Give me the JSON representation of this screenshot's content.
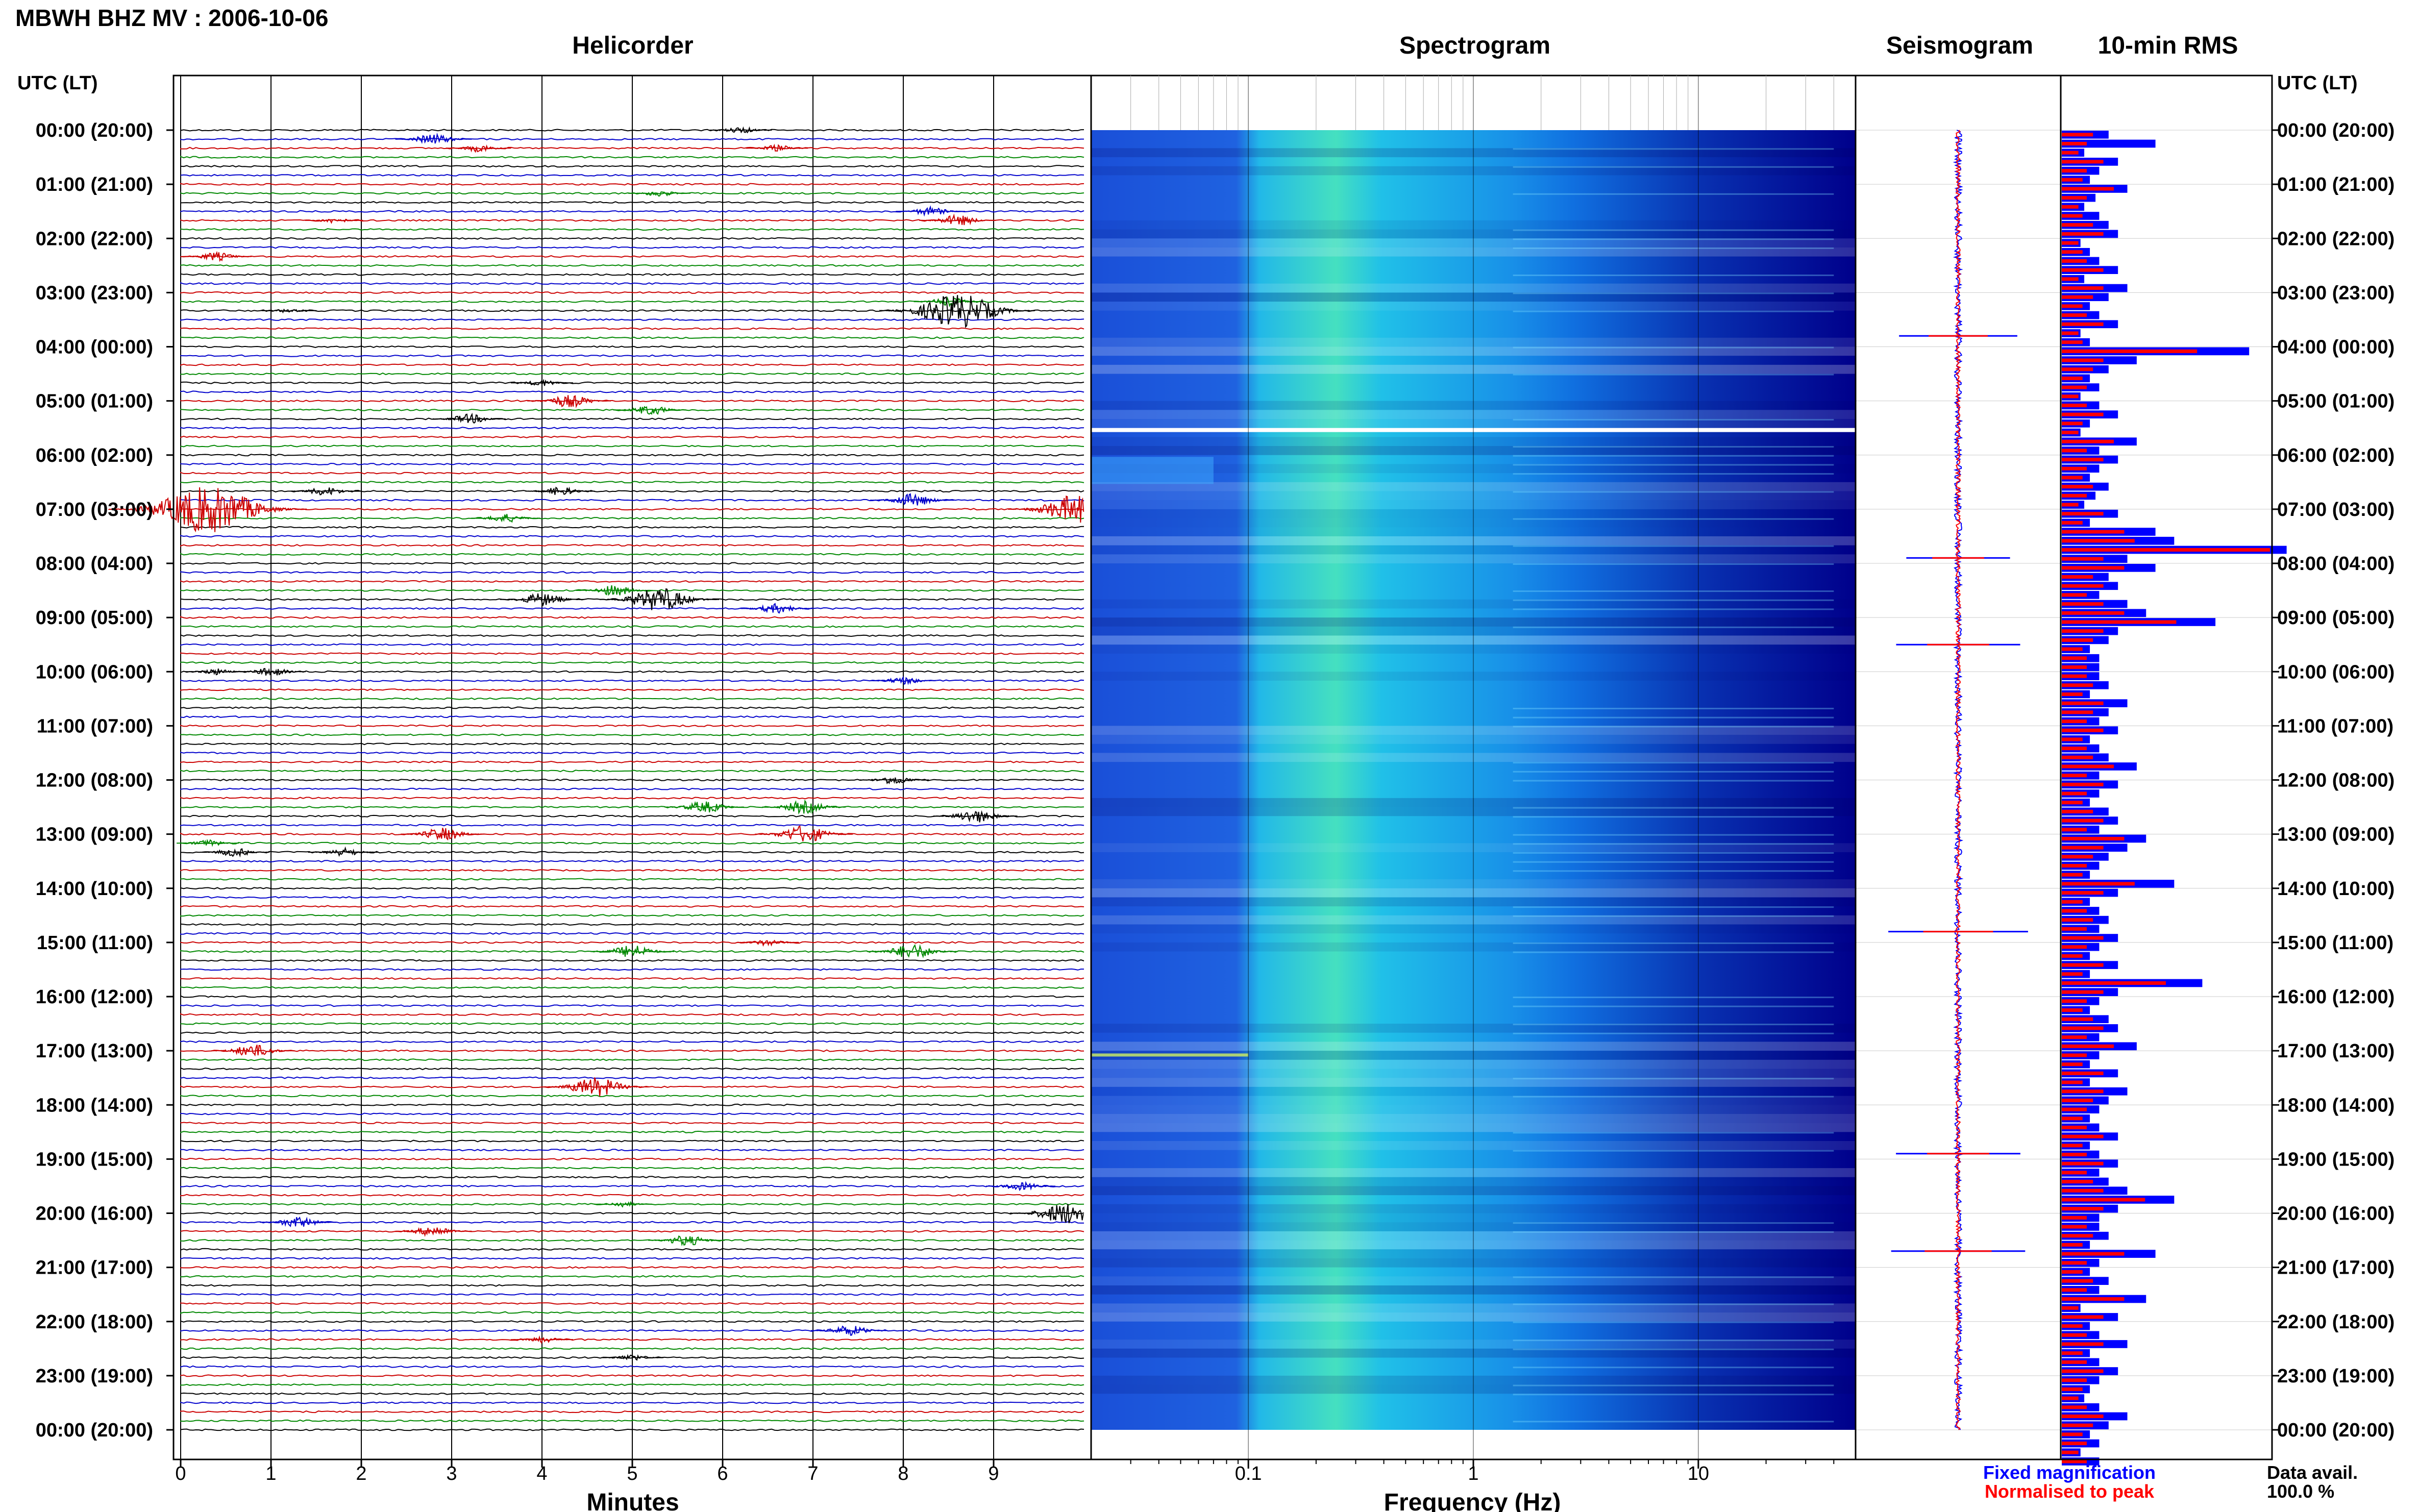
{
  "title": "MBWH BHZ MV : 2006-10-06",
  "panels": {
    "helicorder": "Helicorder",
    "spectrogram": "Spectrogram",
    "seismogram": "Seismogram",
    "rms": "10-min RMS"
  },
  "axis_title_left": "UTC (LT)",
  "axis_title_right": "UTC (LT)",
  "xlabel_helicorder": "Minutes",
  "xlabel_spectrogram": "Frequency (Hz)",
  "legend": {
    "fixed": "Fixed magnification",
    "normalised": "Normalised to peak"
  },
  "data_avail_label": "Data avail.",
  "data_avail_value": "100.0 %",
  "colors": {
    "trace_cycle": [
      "#000000",
      "#0000cc",
      "#cc0000",
      "#008800"
    ],
    "spectrogram_low": "#00008b",
    "spectrogram_high": "#c8f060",
    "rms_fixed": "#0000ff",
    "rms_normalised": "#ff0000"
  },
  "chart_data": [
    {
      "type": "line",
      "name": "helicorder",
      "xlabel": "Minutes",
      "xticks": [
        "0",
        "1",
        "2",
        "3",
        "4",
        "5",
        "6",
        "7",
        "8",
        "9"
      ],
      "xlim": [
        0,
        10
      ],
      "ytick_labels": [
        "00:00 (20:00)",
        "01:00 (21:00)",
        "02:00 (22:00)",
        "03:00 (23:00)",
        "04:00 (00:00)",
        "05:00 (01:00)",
        "06:00 (02:00)",
        "07:00 (03:00)",
        "08:00 (04:00)",
        "09:00 (05:00)",
        "10:00 (06:00)",
        "11:00 (07:00)",
        "12:00 (08:00)",
        "13:00 (09:00)",
        "14:00 (10:00)",
        "15:00 (11:00)",
        "16:00 (12:00)",
        "17:00 (13:00)",
        "18:00 (14:00)",
        "19:00 (15:00)",
        "20:00 (16:00)",
        "21:00 (17:00)",
        "22:00 (18:00)",
        "23:00 (19:00)",
        "00:00 (20:00)"
      ],
      "traces_per_hour": 6,
      "events": [
        {
          "hour": 0,
          "line": 0,
          "minute": 6.2,
          "amp": 0.3
        },
        {
          "hour": 0,
          "line": 1,
          "minute": 2.8,
          "amp": 0.5
        },
        {
          "hour": 0,
          "line": 2,
          "minute": 6.6,
          "amp": 0.3
        },
        {
          "hour": 0,
          "line": 2,
          "minute": 3.3,
          "amp": 0.35
        },
        {
          "hour": 1,
          "line": 1,
          "minute": 5.3,
          "amp": 0.3
        },
        {
          "hour": 1,
          "line": 3,
          "minute": 8.3,
          "amp": 0.4
        },
        {
          "hour": 1,
          "line": 4,
          "minute": 8.6,
          "amp": 0.5
        },
        {
          "hour": 1,
          "line": 4,
          "minute": 1.7,
          "amp": 0.25
        },
        {
          "hour": 2,
          "line": 2,
          "minute": 0.4,
          "amp": 0.4
        },
        {
          "hour": 3,
          "line": 1,
          "minute": 8.5,
          "amp": 0.4
        },
        {
          "hour": 3,
          "line": 2,
          "minute": 8.6,
          "amp": 1.6
        },
        {
          "hour": 3,
          "line": 2,
          "minute": 1.2,
          "amp": 0.2
        },
        {
          "hour": 4,
          "line": 4,
          "minute": 4,
          "amp": 0.3
        },
        {
          "hour": 5,
          "line": 0,
          "minute": 4.3,
          "amp": 0.6
        },
        {
          "hour": 5,
          "line": 1,
          "minute": 5.2,
          "amp": 0.45
        },
        {
          "hour": 5,
          "line": 2,
          "minute": 3.2,
          "amp": 0.45
        },
        {
          "hour": 6,
          "line": 4,
          "minute": 1.6,
          "amp": 0.4
        },
        {
          "hour": 6,
          "line": 4,
          "minute": 4.2,
          "amp": 0.4
        },
        {
          "hour": 6,
          "line": 5,
          "minute": 8.1,
          "amp": 0.6
        },
        {
          "hour": 7,
          "line": 0,
          "minute": 0.3,
          "amp": 2.2
        },
        {
          "hour": 7,
          "line": 0,
          "minute": 9.9,
          "amp": 1.3
        },
        {
          "hour": 7,
          "line": 1,
          "minute": 3.6,
          "amp": 0.4
        },
        {
          "hour": 8,
          "line": 3,
          "minute": 4.8,
          "amp": 0.5
        },
        {
          "hour": 8,
          "line": 4,
          "minute": 4.0,
          "amp": 0.6
        },
        {
          "hour": 8,
          "line": 4,
          "minute": 5.3,
          "amp": 1.1
        },
        {
          "hour": 8,
          "line": 5,
          "minute": 6.6,
          "amp": 0.45
        },
        {
          "hour": 10,
          "line": 0,
          "minute": 0.4,
          "amp": 0.3
        },
        {
          "hour": 10,
          "line": 0,
          "minute": 1.0,
          "amp": 0.4
        },
        {
          "hour": 10,
          "line": 1,
          "minute": 8.0,
          "amp": 0.35
        },
        {
          "hour": 12,
          "line": 0,
          "minute": 7.9,
          "amp": 0.4
        },
        {
          "hour": 12,
          "line": 3,
          "minute": 5.8,
          "amp": 0.55
        },
        {
          "hour": 12,
          "line": 3,
          "minute": 6.9,
          "amp": 0.6
        },
        {
          "hour": 12,
          "line": 4,
          "minute": 8.8,
          "amp": 0.6
        },
        {
          "hour": 13,
          "line": 0,
          "minute": 2.9,
          "amp": 0.6
        },
        {
          "hour": 13,
          "line": 0,
          "minute": 6.9,
          "amp": 0.8
        },
        {
          "hour": 13,
          "line": 1,
          "minute": 0.3,
          "amp": 0.3
        },
        {
          "hour": 13,
          "line": 2,
          "minute": 0.6,
          "amp": 0.4
        },
        {
          "hour": 13,
          "line": 2,
          "minute": 1.8,
          "amp": 0.4
        },
        {
          "hour": 15,
          "line": 0,
          "minute": 6.5,
          "amp": 0.3
        },
        {
          "hour": 15,
          "line": 1,
          "minute": 8.1,
          "amp": 0.7
        },
        {
          "hour": 15,
          "line": 1,
          "minute": 5.0,
          "amp": 0.6
        },
        {
          "hour": 17,
          "line": 0,
          "minute": 0.8,
          "amp": 0.6
        },
        {
          "hour": 17,
          "line": 4,
          "minute": 4.6,
          "amp": 0.9
        },
        {
          "hour": 20,
          "line": 0,
          "minute": 9.8,
          "amp": 1.0
        },
        {
          "hour": 20,
          "line": 1,
          "minute": 1.3,
          "amp": 0.5
        },
        {
          "hour": 20,
          "line": 2,
          "minute": 2.8,
          "amp": 0.5
        },
        {
          "hour": 20,
          "line": 3,
          "minute": 5.6,
          "amp": 0.5
        },
        {
          "hour": 22,
          "line": 1,
          "minute": 7.4,
          "amp": 0.5
        },
        {
          "hour": 22,
          "line": 2,
          "minute": 4.0,
          "amp": 0.3
        },
        {
          "hour": 22,
          "line": 4,
          "minute": 5.0,
          "amp": 0.3
        },
        {
          "hour": 19,
          "line": 3,
          "minute": 9.3,
          "amp": 0.4
        },
        {
          "hour": 19,
          "line": 5,
          "minute": 4.9,
          "amp": 0.25
        }
      ]
    },
    {
      "type": "heatmap",
      "name": "spectrogram",
      "xlabel": "Frequency (Hz)",
      "xscale": "log",
      "xlim": [
        0.02,
        50
      ],
      "xticks": [
        0.1,
        1,
        10
      ],
      "xtick_labels": [
        "0.1",
        "1",
        "10"
      ],
      "colormap": "jet",
      "peak_frequency_hz": 0.35
    },
    {
      "type": "line",
      "name": "seismogram",
      "spikes_hour": [
        3.8,
        7.9,
        9.5,
        14.8,
        18.9,
        20.7
      ]
    },
    {
      "type": "bar",
      "name": "10-min RMS",
      "orientation": "horizontal",
      "series": [
        {
          "name": "Fixed magnification",
          "values": [
            0.25,
            0.5,
            0.12,
            0.3,
            0.2,
            0.15,
            0.35,
            0.18,
            0.12,
            0.2,
            0.25,
            0.3,
            0.1,
            0.15,
            0.2,
            0.3,
            0.12,
            0.35,
            0.25,
            0.15,
            0.2,
            0.3,
            0.1,
            0.15,
            1.0,
            0.4,
            0.25,
            0.15,
            0.2,
            0.1,
            0.2,
            0.3,
            0.15,
            0.1,
            0.4,
            0.2,
            0.3,
            0.2,
            0.15,
            0.25,
            0.18,
            0.12,
            0.3,
            0.15,
            0.5,
            0.6,
            1.2,
            0.35,
            0.5,
            0.25,
            0.3,
            0.2,
            0.35,
            0.45,
            0.82,
            0.3,
            0.25,
            0.15,
            0.2,
            0.2,
            0.2,
            0.25,
            0.15,
            0.35,
            0.25,
            0.2,
            0.3,
            0.15,
            0.2,
            0.25,
            0.4,
            0.2,
            0.3,
            0.2,
            0.15,
            0.25,
            0.3,
            0.2,
            0.45,
            0.35,
            0.25,
            0.2,
            0.15,
            0.6,
            0.3,
            0.15,
            0.2,
            0.25,
            0.2,
            0.3,
            0.2,
            0.15,
            0.3,
            0.15,
            0.75,
            0.3,
            0.2,
            0.15,
            0.25,
            0.3,
            0.2,
            0.4,
            0.2,
            0.15,
            0.3,
            0.15,
            0.35,
            0.25,
            0.2,
            0.15,
            0.2,
            0.3,
            0.15,
            0.2,
            0.3,
            0.2,
            0.25,
            0.35,
            0.6,
            0.3,
            0.2,
            0.2,
            0.25,
            0.15,
            0.5,
            0.2,
            0.15,
            0.25,
            0.2,
            0.45,
            0.1,
            0.3,
            0.15,
            0.2,
            0.35,
            0.15,
            0.2,
            0.3,
            0.2,
            0.15,
            0.12,
            0.2,
            0.35,
            0.25,
            0.15,
            0.2,
            0.1,
            0.2
          ]
        },
        {
          "name": "Normalised to peak",
          "values": [
            0.15,
            0.12,
            0.08,
            0.2,
            0.12,
            0.1,
            0.25,
            0.12,
            0.08,
            0.1,
            0.15,
            0.2,
            0.08,
            0.1,
            0.12,
            0.2,
            0.08,
            0.2,
            0.15,
            0.1,
            0.12,
            0.2,
            0.08,
            0.1,
            0.65,
            0.2,
            0.15,
            0.1,
            0.12,
            0.08,
            0.12,
            0.2,
            0.1,
            0.08,
            0.25,
            0.12,
            0.2,
            0.12,
            0.1,
            0.15,
            0.12,
            0.08,
            0.2,
            0.1,
            0.3,
            0.35,
            1.0,
            0.2,
            0.3,
            0.15,
            0.2,
            0.12,
            0.2,
            0.3,
            0.55,
            0.2,
            0.15,
            0.1,
            0.12,
            0.12,
            0.12,
            0.15,
            0.1,
            0.2,
            0.15,
            0.12,
            0.2,
            0.1,
            0.12,
            0.15,
            0.25,
            0.12,
            0.2,
            0.12,
            0.1,
            0.15,
            0.2,
            0.12,
            0.3,
            0.2,
            0.15,
            0.12,
            0.1,
            0.35,
            0.2,
            0.1,
            0.12,
            0.15,
            0.12,
            0.2,
            0.12,
            0.1,
            0.2,
            0.1,
            0.5,
            0.2,
            0.12,
            0.1,
            0.15,
            0.2,
            0.12,
            0.25,
            0.12,
            0.1,
            0.2,
            0.1,
            0.2,
            0.15,
            0.12,
            0.1,
            0.12,
            0.2,
            0.1,
            0.12,
            0.2,
            0.12,
            0.15,
            0.2,
            0.4,
            0.2,
            0.12,
            0.12,
            0.15,
            0.1,
            0.3,
            0.12,
            0.1,
            0.15,
            0.12,
            0.3,
            0.08,
            0.2,
            0.1,
            0.12,
            0.2,
            0.1,
            0.12,
            0.2,
            0.12,
            0.1,
            0.08,
            0.12,
            0.2,
            0.15,
            0.1,
            0.12,
            0.08,
            0.12
          ]
        }
      ]
    }
  ]
}
